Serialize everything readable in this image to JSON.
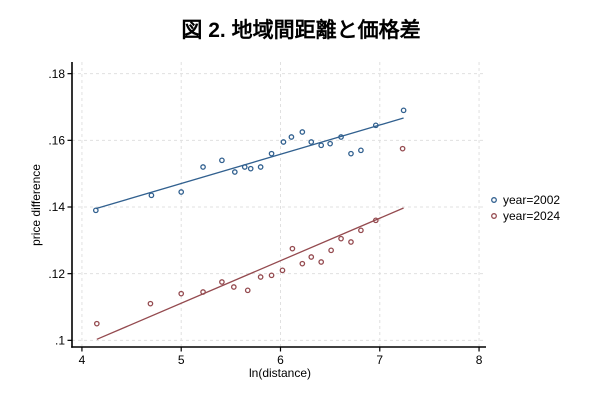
{
  "chart_data": {
    "type": "scatter",
    "title": "図 2. 地域間距離と価格差",
    "xlabel": "ln(distance)",
    "ylabel": "price difference",
    "xlim": [
      3.9,
      8.07
    ],
    "ylim": [
      0.098,
      0.1835
    ],
    "xticks": [
      4,
      5,
      6,
      7,
      8
    ],
    "xtick_labels": [
      "4",
      "5",
      "6",
      "7",
      "8"
    ],
    "yticks": [
      0.1,
      0.12,
      0.14,
      0.16,
      0.18
    ],
    "ytick_labels": [
      ".1",
      ".12",
      ".14",
      ".16",
      ".18"
    ],
    "grid": true,
    "grid_color": "#e0e0e0",
    "axis_color": "#000000",
    "legend_position": "right-outside",
    "series": [
      {
        "name": "year=2002",
        "color": "#31608f",
        "marker": "open-circle",
        "points": [
          [
            4.14,
            0.139
          ],
          [
            4.7,
            0.1435
          ],
          [
            5.0,
            0.1445
          ],
          [
            5.22,
            0.152
          ],
          [
            5.41,
            0.154
          ],
          [
            5.54,
            0.1505
          ],
          [
            5.64,
            0.152
          ],
          [
            5.7,
            0.1515
          ],
          [
            5.8,
            0.152
          ],
          [
            5.91,
            0.156
          ],
          [
            6.03,
            0.1595
          ],
          [
            6.11,
            0.161
          ],
          [
            6.22,
            0.1625
          ],
          [
            6.31,
            0.1595
          ],
          [
            6.41,
            0.1585
          ],
          [
            6.5,
            0.159
          ],
          [
            6.61,
            0.161
          ],
          [
            6.71,
            0.156
          ],
          [
            6.81,
            0.157
          ],
          [
            6.96,
            0.1645
          ],
          [
            7.24,
            0.169
          ]
        ],
        "fit_line": [
          [
            4.14,
            0.1395
          ],
          [
            7.24,
            0.1667
          ]
        ]
      },
      {
        "name": "year=2024",
        "color": "#944a4f",
        "marker": "open-circle",
        "points": [
          [
            4.15,
            0.105
          ],
          [
            4.69,
            0.111
          ],
          [
            5.0,
            0.114
          ],
          [
            5.22,
            0.1145
          ],
          [
            5.41,
            0.1175
          ],
          [
            5.53,
            0.116
          ],
          [
            5.67,
            0.115
          ],
          [
            5.8,
            0.119
          ],
          [
            5.91,
            0.1195
          ],
          [
            6.02,
            0.121
          ],
          [
            6.12,
            0.1275
          ],
          [
            6.22,
            0.123
          ],
          [
            6.31,
            0.125
          ],
          [
            6.41,
            0.1235
          ],
          [
            6.51,
            0.127
          ],
          [
            6.61,
            0.1305
          ],
          [
            6.71,
            0.1295
          ],
          [
            6.81,
            0.133
          ],
          [
            6.96,
            0.136
          ],
          [
            7.23,
            0.1575
          ]
        ],
        "fit_line": [
          [
            4.15,
            0.1003
          ],
          [
            7.24,
            0.1397
          ]
        ]
      }
    ]
  }
}
